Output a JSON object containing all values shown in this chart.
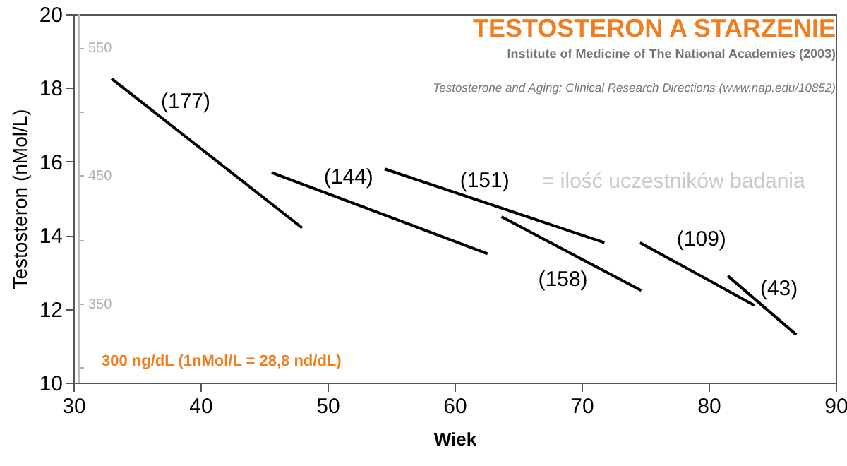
{
  "chart_data": {
    "type": "line",
    "title": "TESTOSTERON A STARZENIE",
    "subtitle": "Institute of Medicine of The National Academies (2003)",
    "xlabel": "Wiek",
    "ylabel": "Testosteron  (nMol/L)",
    "xlim": [
      30,
      90
    ],
    "xticks": [
      30,
      40,
      50,
      60,
      70,
      80,
      90
    ],
    "ylim": [
      10,
      20
    ],
    "yticks": [
      10,
      12,
      14,
      16,
      18,
      20
    ],
    "y2lim": [
      288,
      576
    ],
    "y2ticks": [
      {
        "value": 300,
        "label": null
      },
      350,
      {
        "value": 400,
        "label": null
      },
      450,
      {
        "value": 500,
        "label": null
      },
      550
    ],
    "grid": false,
    "line_style": "solid",
    "series": [
      {
        "name": "(177)",
        "color": "#000000",
        "x": [
          33,
          48
        ],
        "values": [
          18.25,
          14.2
        ]
      },
      {
        "name": "(144)",
        "color": "#000000",
        "x": [
          45.6,
          62.6
        ],
        "values": [
          15.7,
          13.5
        ]
      },
      {
        "name": "(151)",
        "color": "#000000",
        "x": [
          54.5,
          71.8
        ],
        "values": [
          15.8,
          13.8
        ]
      },
      {
        "name": "(158)",
        "color": "#000000",
        "x": [
          63.7,
          74.7
        ],
        "values": [
          14.5,
          12.5
        ]
      },
      {
        "name": "(109)",
        "color": "#000000",
        "x": [
          74.6,
          83.6
        ],
        "values": [
          13.8,
          12.1
        ]
      },
      {
        "name": "(43)",
        "color": "#000000",
        "x": [
          81.5,
          86.9
        ],
        "values": [
          12.9,
          11.3
        ]
      }
    ],
    "annotations": [
      "= ilość uczestników badania",
      "Testosterone and Aging: Clinical Research Directions (www.nap.edu/10852)",
      "300 ng/dL (1nMol/L = 28,8  nd/dL)"
    ]
  }
}
